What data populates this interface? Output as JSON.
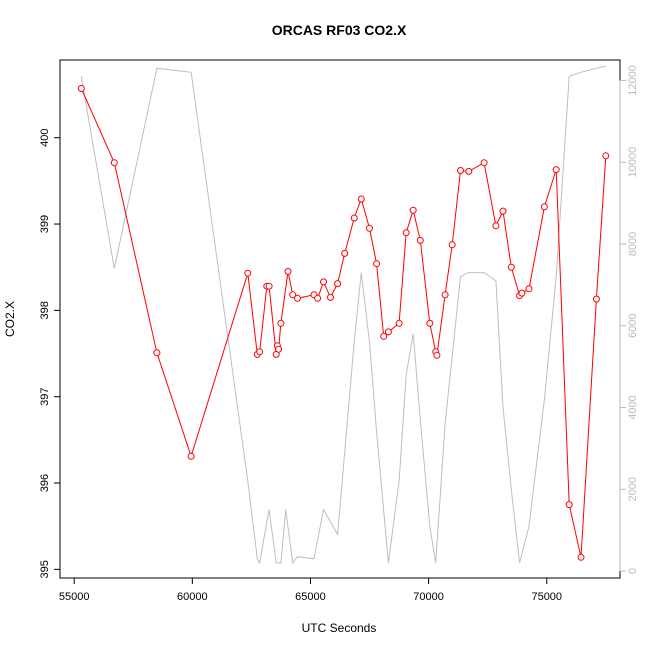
{
  "chart_data": {
    "type": "line",
    "title": "ORCAS RF03 CO2.X",
    "xlabel": "UTC Seconds",
    "ylabel": "CO2.X",
    "xlim": [
      54400,
      78100
    ],
    "ylim": [
      394.9,
      400.9
    ],
    "y2lim": [
      -170,
      12500
    ],
    "x_ticks": [
      55000,
      60000,
      65000,
      70000,
      75000
    ],
    "y_ticks": [
      395,
      396,
      397,
      398,
      399,
      400
    ],
    "y2_ticks": [
      0,
      2000,
      4000,
      6000,
      8000,
      10000,
      12000
    ],
    "colors": {
      "co2": "#ff0000",
      "altitude": "#bebebe",
      "right_axis": "#bbbbbb"
    },
    "series": [
      {
        "axis": "left",
        "style": "line+points",
        "x": [
          55300,
          56700,
          58500,
          59950,
          62350,
          62750,
          62850,
          63150,
          63250,
          63550,
          63600,
          63650,
          63750,
          64050,
          64250,
          64450,
          65150,
          65300,
          65550,
          65850,
          66150,
          66450,
          66850,
          67150,
          67500,
          67800,
          68100,
          68300,
          68750,
          69050,
          69350,
          69650,
          70050,
          70300,
          70350,
          70700,
          71000,
          71350,
          71700,
          72350,
          72850,
          73150,
          73500,
          73850,
          73950,
          74250,
          74900,
          75400,
          75950,
          76450,
          77100,
          77500
        ],
        "y": [
          400.57,
          399.71,
          397.51,
          396.31,
          398.43,
          397.49,
          397.52,
          398.28,
          398.28,
          397.49,
          397.59,
          397.55,
          397.85,
          398.45,
          398.18,
          398.14,
          398.18,
          398.14,
          398.33,
          398.15,
          398.31,
          398.66,
          399.07,
          399.29,
          398.95,
          398.54,
          397.7,
          397.75,
          397.85,
          398.9,
          399.16,
          398.81,
          397.85,
          397.52,
          397.48,
          398.18,
          398.76,
          399.62,
          399.61,
          399.71,
          398.98,
          399.15,
          398.5,
          398.17,
          398.2,
          398.25,
          399.2,
          399.63,
          395.75,
          395.14,
          398.13,
          399.79
        ]
      },
      {
        "axis": "right",
        "style": "line",
        "x": [
          55300,
          56700,
          58500,
          59950,
          62350,
          62750,
          62850,
          63150,
          63250,
          63550,
          63750,
          63950,
          64250,
          64450,
          65150,
          65550,
          66150,
          66850,
          67150,
          67500,
          67800,
          68300,
          68750,
          69050,
          69350,
          69650,
          70050,
          70300,
          70700,
          71350,
          71700,
          72350,
          72850,
          73150,
          73500,
          73850,
          74250,
          74900,
          75400,
          75950,
          76450,
          77100,
          77500
        ],
        "y": [
          12100,
          7400,
          12300,
          12200,
          2200,
          300,
          200,
          1200,
          1500,
          200,
          200,
          1500,
          200,
          350,
          300,
          1500,
          900,
          5600,
          7300,
          5600,
          3400,
          200,
          2200,
          4800,
          5800,
          3700,
          1100,
          200,
          3600,
          7200,
          7300,
          7300,
          7100,
          4000,
          2000,
          200,
          1100,
          4200,
          7200,
          12100,
          12200,
          12300,
          12350
        ]
      }
    ]
  }
}
